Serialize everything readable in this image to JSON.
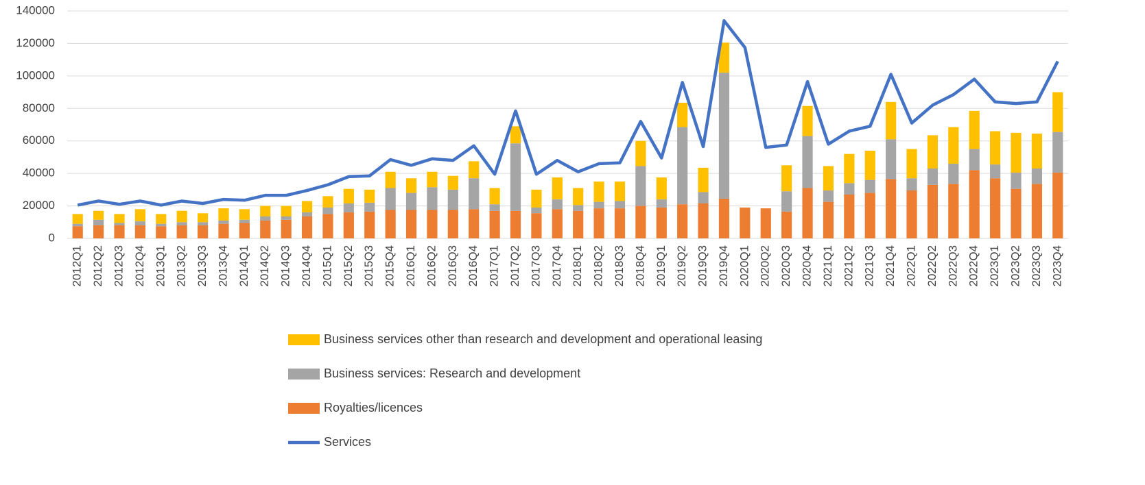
{
  "chart_data": {
    "type": "bar",
    "categories": [
      "2012Q1",
      "2012Q2",
      "2012Q3",
      "2012Q4",
      "2013Q1",
      "2013Q2",
      "2013Q3",
      "2013Q4",
      "2014Q1",
      "2014Q2",
      "2014Q3",
      "2014Q4",
      "2015Q1",
      "2015Q2",
      "2015Q3",
      "2015Q4",
      "2016Q1",
      "2016Q2",
      "2016Q3",
      "2016Q4",
      "2017Q1",
      "2017Q2",
      "2017Q3",
      "2017Q4",
      "2018Q1",
      "2018Q2",
      "2018Q3",
      "2018Q4",
      "2019Q1",
      "2019Q2",
      "2019Q3",
      "2019Q4",
      "2020Q1",
      "2020Q2",
      "2020Q3",
      "2020Q4",
      "2021Q1",
      "2021Q2",
      "2021Q3",
      "2021Q4",
      "2022Q1",
      "2022Q2",
      "2022Q3",
      "2022Q4",
      "2023Q1",
      "2023Q2",
      "2023Q3",
      "2023Q4"
    ],
    "series": [
      {
        "name": "Business services other than research and development and operational leasing",
        "type": "bar",
        "color": "#ffc000",
        "values": [
          6000,
          5500,
          5500,
          7500,
          6000,
          7000,
          5500,
          7500,
          6500,
          6500,
          6500,
          7000,
          7000,
          9000,
          8000,
          10000,
          9000,
          9500,
          8500,
          10500,
          10000,
          10500,
          11000,
          13500,
          10500,
          12500,
          12000,
          15500,
          13500,
          15000,
          15000,
          18500,
          0,
          0,
          16000,
          18500,
          15000,
          18000,
          18000,
          23000,
          18000,
          20500,
          22500,
          23500,
          20500,
          24500,
          21500,
          24500
        ]
      },
      {
        "name": "Business services: Research and development",
        "type": "bar",
        "color": "#a5a5a5",
        "values": [
          1500,
          3500,
          1500,
          2500,
          1500,
          2000,
          2000,
          2000,
          2000,
          2500,
          2000,
          2500,
          4000,
          5500,
          5500,
          13500,
          10500,
          14000,
          12500,
          19000,
          4000,
          41500,
          3500,
          6000,
          3500,
          4000,
          4500,
          24500,
          5000,
          47500,
          7000,
          77500,
          0,
          0,
          12500,
          32000,
          7000,
          7000,
          8000,
          24500,
          7500,
          10000,
          12500,
          13000,
          8500,
          10000,
          9500,
          25000
        ]
      },
      {
        "name": "Royalties/licences",
        "type": "bar",
        "color": "#ed7d31",
        "values": [
          7500,
          8000,
          8000,
          8000,
          7500,
          8000,
          8000,
          9000,
          9500,
          11000,
          11500,
          13500,
          15000,
          16000,
          16500,
          17500,
          17500,
          17500,
          17500,
          18000,
          17000,
          17000,
          15500,
          18000,
          17000,
          18500,
          18500,
          20000,
          19000,
          21000,
          21500,
          24500,
          19000,
          18500,
          16500,
          31000,
          22500,
          27000,
          28000,
          36500,
          29500,
          33000,
          33500,
          42000,
          37000,
          30500,
          33500,
          40500
        ]
      },
      {
        "name": "Services",
        "type": "line",
        "color": "#4472c4",
        "values": [
          20500,
          23000,
          21000,
          23000,
          20500,
          23000,
          21500,
          24000,
          23500,
          26500,
          26500,
          29500,
          33000,
          38000,
          38500,
          48500,
          45000,
          49000,
          48000,
          57000,
          39500,
          78500,
          39500,
          48000,
          41000,
          46000,
          46500,
          72000,
          49500,
          96000,
          56500,
          134000,
          117500,
          56000,
          57500,
          96500,
          58000,
          66000,
          69000,
          101000,
          71000,
          82000,
          88500,
          98000,
          84000,
          83000,
          84000,
          109000
        ]
      }
    ],
    "ylim": [
      0,
      140000
    ],
    "yticks": [
      0,
      20000,
      40000,
      60000,
      80000,
      100000,
      120000,
      140000
    ],
    "grid": true
  }
}
